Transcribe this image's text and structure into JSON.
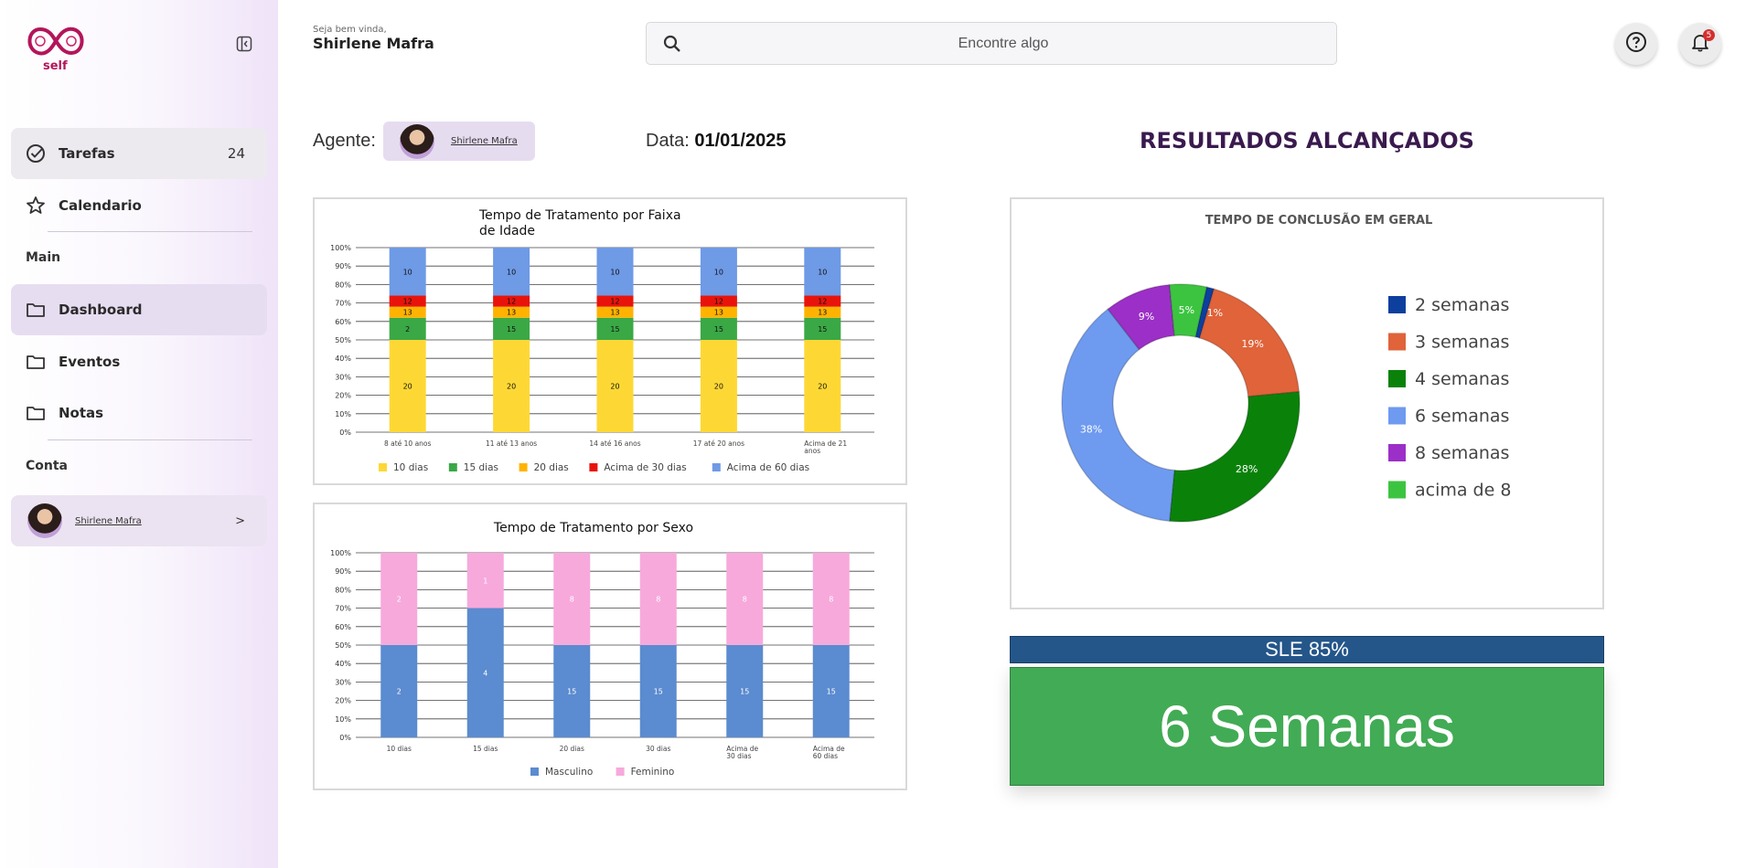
{
  "app": {
    "logo_text": "self"
  },
  "sidebar": {
    "items": [
      {
        "label": "Tarefas",
        "count": "24"
      },
      {
        "label": "Calendario"
      },
      {
        "label": "Dashboard"
      },
      {
        "label": "Eventos"
      },
      {
        "label": "Notas"
      }
    ],
    "section_main": "Main",
    "section_account": "Conta",
    "account_name": "Shirlene Mafra",
    "account_chevron": ">"
  },
  "header": {
    "welcome": "Seja bem vinda,",
    "user_name": "Shirlene Mafra",
    "search_placeholder": "Encontre algo",
    "notification_count": "5"
  },
  "filters": {
    "agent_label": "Agente:",
    "agent_name": "Shirlene Mafra",
    "date_label": "Data:",
    "date_value": "01/01/2025"
  },
  "results": {
    "title": "RESULTADOS ALCANÇADOS",
    "sle_label": "SLE 85%",
    "big_value": "6 Semanas"
  },
  "chart_data": [
    {
      "type": "bar",
      "stacked": true,
      "title": "Tempo de Tratamento por Faixa de Idade",
      "categories": [
        "8 até 10 anos",
        "11 até 13 anos",
        "14 até 16 anos",
        "17 até 20 anos",
        "Acima de 21 anos"
      ],
      "y_ticks": [
        "0%",
        "10%",
        "20%",
        "30%",
        "40%",
        "50%",
        "60%",
        "70%",
        "80%",
        "90%",
        "100%"
      ],
      "ylim": [
        0,
        100
      ],
      "series": [
        {
          "name": "10 dias",
          "color": "#fdd835",
          "percent": [
            50,
            50,
            50,
            50,
            50
          ],
          "labels": [
            "20",
            "20",
            "20",
            "20",
            "20"
          ]
        },
        {
          "name": "15 dias",
          "color": "#3aa845",
          "percent": [
            12,
            12,
            12,
            12,
            12
          ],
          "labels": [
            "2",
            "15",
            "15",
            "15",
            "15"
          ]
        },
        {
          "name": "20 dias",
          "color": "#ffb300",
          "percent": [
            6,
            6,
            6,
            6,
            6
          ],
          "labels": [
            "13",
            "13",
            "13",
            "13",
            "13"
          ]
        },
        {
          "name": "Acima de 30 dias",
          "color": "#e8140c",
          "percent": [
            6,
            6,
            6,
            6,
            6
          ],
          "labels": [
            "12",
            "12",
            "12",
            "12",
            "12"
          ]
        },
        {
          "name": "Acima de 60 dias",
          "color": "#6e9ae6",
          "percent": [
            26,
            26,
            26,
            26,
            26
          ],
          "labels": [
            "10",
            "10",
            "10",
            "10",
            "10"
          ]
        }
      ],
      "legend_position": "bottom",
      "grid": true
    },
    {
      "type": "bar",
      "stacked": true,
      "title": "Tempo  de Tratamento por Sexo",
      "categories": [
        "10 dias",
        "15 dias",
        "20 dias",
        "30 dias",
        "Acima de 30 dias",
        "Acima de 60 dias"
      ],
      "y_ticks": [
        "0%",
        "10%",
        "20%",
        "30%",
        "40%",
        "50%",
        "60%",
        "70%",
        "80%",
        "90%",
        "100%"
      ],
      "ylim": [
        0,
        100
      ],
      "series": [
        {
          "name": "Masculino",
          "color": "#5b8bd0",
          "percent": [
            50,
            70,
            50,
            50,
            50,
            50
          ],
          "labels": [
            "2",
            "4",
            "15",
            "15",
            "15",
            "15"
          ]
        },
        {
          "name": "Feminino",
          "color": "#f7a9dc",
          "percent": [
            50,
            30,
            50,
            50,
            50,
            50
          ],
          "labels": [
            "2",
            "1",
            "8",
            "8",
            "8",
            "8"
          ]
        }
      ],
      "legend_position": "bottom",
      "grid": true
    },
    {
      "type": "pie",
      "donut": true,
      "title": "TEMPO DE CONCLUSÃO EM GERAL",
      "slices": [
        {
          "name": "2 semanas",
          "value": 1,
          "label": "",
          "color": "#0d3f9e"
        },
        {
          "name": "3 semanas",
          "value": 19,
          "label": "19%",
          "color": "#e0633a"
        },
        {
          "name": "4 semanas",
          "value": 28,
          "label": "28%",
          "color": "#0a820a"
        },
        {
          "name": "6 semanas",
          "value": 38,
          "label": "38%",
          "color": "#6e9af0"
        },
        {
          "name": "8 semanas",
          "value": 9,
          "label": "9%",
          "color": "#9c2fc7"
        },
        {
          "name": "acima de 8",
          "value": 5,
          "label": "5%",
          "color": "#3cc440"
        }
      ],
      "extra_label": "1%",
      "legend_position": "right"
    }
  ]
}
